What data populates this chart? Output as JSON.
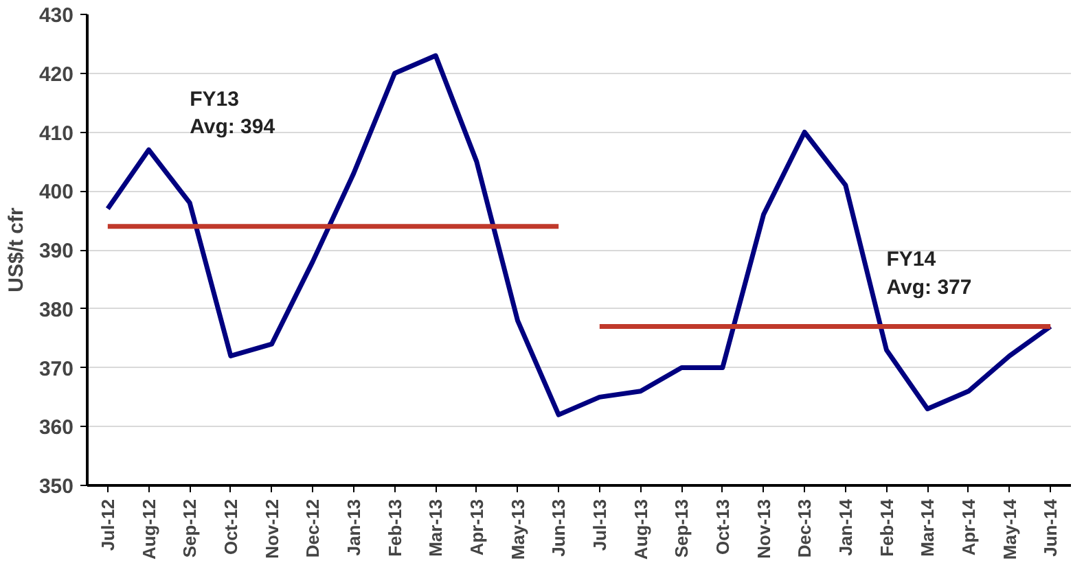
{
  "chart_data": {
    "type": "line",
    "ylabel": "US$/t cfr",
    "categories": [
      "Jul-12",
      "Aug-12",
      "Sep-12",
      "Oct-12",
      "Nov-12",
      "Dec-12",
      "Jan-13",
      "Feb-13",
      "Mar-13",
      "Apr-13",
      "May-13",
      "Jun-13",
      "Jul-13",
      "Aug-13",
      "Sep-13",
      "Oct-13",
      "Nov-13",
      "Dec-13",
      "Jan-14",
      "Feb-14",
      "Mar-14",
      "Apr-14",
      "May-14",
      "Jun-14"
    ],
    "series": [
      {
        "color": "#000080",
        "values": [
          397,
          407,
          398,
          372,
          374,
          388,
          403,
          420,
          423,
          405,
          378,
          362,
          365,
          366,
          370,
          370,
          396,
          410,
          401,
          373,
          363,
          366,
          372,
          377
        ]
      },
      {
        "color": "#c0392b",
        "x": [
          "Jul-12",
          "Jun-13"
        ],
        "values": [
          394,
          394
        ]
      },
      {
        "color": "#c0392b",
        "x": [
          "Jul-13",
          "Jun-14"
        ],
        "values": [
          377,
          377
        ]
      }
    ],
    "annotations": [
      "FY13\nAvg: 394",
      "FY14\nAvg: 377"
    ],
    "ylim": [
      350,
      430
    ],
    "yticks": [
      350,
      360,
      370,
      380,
      390,
      400,
      410,
      420,
      430
    ],
    "grid": "y",
    "marker": "none",
    "line_style": "solid"
  }
}
